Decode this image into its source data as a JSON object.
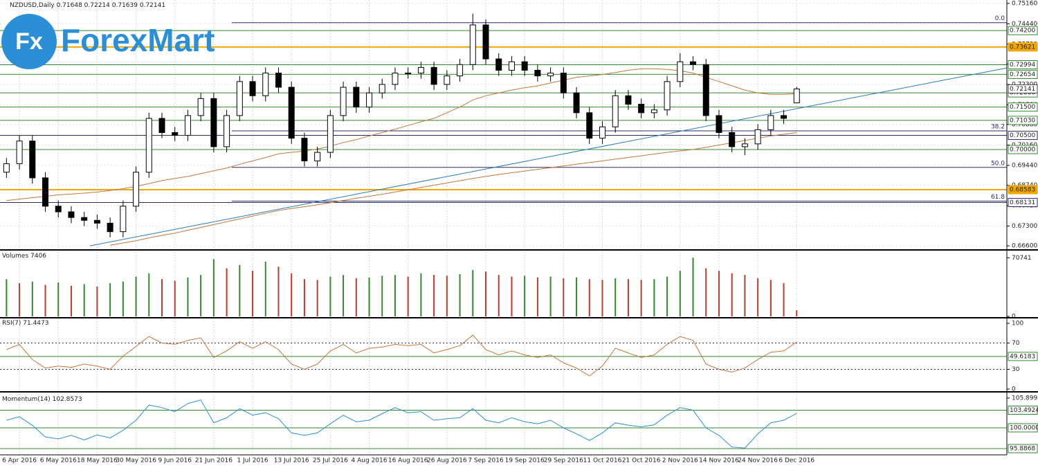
{
  "logo": {
    "mark": "Fx",
    "name": "ForexMart"
  },
  "chart_data": [
    {
      "type": "candlestick",
      "title": "NZDUSD,Daily",
      "categories": [
        null,
        "6 Apr 2016",
        null,
        null,
        "6 May 2016",
        null,
        null,
        "18 May 2016",
        null,
        null,
        "30 May 2016",
        null,
        null,
        "9 Jun 2016",
        null,
        null,
        "21 Jun 2016",
        null,
        null,
        "1 Jul 2016",
        null,
        null,
        "13 Jul 2016",
        null,
        null,
        "25 Jul 2016",
        null,
        null,
        "4 Aug 2016",
        null,
        null,
        "16 Aug 2016",
        null,
        null,
        "26 Aug 2016",
        null,
        null,
        "7 Sep 2016",
        null,
        null,
        "19 Sep 2016",
        null,
        null,
        "29 Sep 2016",
        null,
        null,
        "11 Oct 2016",
        null,
        null,
        "21 Oct 2016",
        null,
        null,
        "2 Nov 2016",
        null,
        null,
        "14 Nov 2016",
        null,
        null,
        "24 Nov 2016",
        null,
        null,
        "6 Dec 2016"
      ],
      "open": [
        0.692,
        0.695,
        0.703,
        0.69,
        0.68,
        0.678,
        0.676,
        0.675,
        0.674,
        0.671,
        0.68,
        0.692,
        0.711,
        0.706,
        0.705,
        0.712,
        0.718,
        0.701,
        0.712,
        0.724,
        0.719,
        0.727,
        0.722,
        0.704,
        0.696,
        0.699,
        0.712,
        0.722,
        0.715,
        0.72,
        0.723,
        0.727,
        0.727,
        0.729,
        0.723,
        0.726,
        0.73,
        0.744,
        0.732,
        0.728,
        0.731,
        0.728,
        0.726,
        0.727,
        0.72,
        0.713,
        0.704,
        0.708,
        0.719,
        0.716,
        0.713,
        0.714,
        0.724,
        0.731,
        0.73,
        0.712,
        0.706,
        0.701,
        0.702,
        0.707,
        0.712,
        0.71648
      ],
      "high": [
        0.697,
        0.705,
        0.705,
        0.692,
        0.682,
        0.68,
        0.678,
        0.677,
        0.676,
        0.682,
        0.694,
        0.713,
        0.713,
        0.708,
        0.714,
        0.72,
        0.72,
        0.714,
        0.726,
        0.726,
        0.729,
        0.729,
        0.724,
        0.706,
        0.701,
        0.714,
        0.724,
        0.724,
        0.722,
        0.725,
        0.729,
        0.729,
        0.731,
        0.731,
        0.728,
        0.732,
        0.748,
        0.746,
        0.734,
        0.733,
        0.733,
        0.73,
        0.729,
        0.729,
        0.722,
        0.715,
        0.71,
        0.721,
        0.721,
        0.718,
        0.716,
        0.726,
        0.734,
        0.733,
        0.732,
        0.714,
        0.708,
        0.704,
        0.709,
        0.714,
        0.714,
        0.72214
      ],
      "low": [
        0.69,
        0.693,
        0.688,
        0.678,
        0.676,
        0.674,
        0.673,
        0.672,
        0.669,
        0.669,
        0.678,
        0.69,
        0.704,
        0.703,
        0.703,
        0.71,
        0.699,
        0.699,
        0.71,
        0.717,
        0.717,
        0.72,
        0.702,
        0.694,
        0.694,
        0.697,
        0.71,
        0.713,
        0.713,
        0.718,
        0.721,
        0.725,
        0.725,
        0.721,
        0.721,
        0.724,
        0.728,
        0.73,
        0.726,
        0.726,
        0.726,
        0.724,
        0.724,
        0.718,
        0.711,
        0.702,
        0.702,
        0.706,
        0.714,
        0.711,
        0.711,
        0.712,
        0.722,
        0.728,
        0.71,
        0.704,
        0.699,
        0.698,
        0.7,
        0.705,
        0.709,
        0.71639
      ],
      "close": [
        0.695,
        0.703,
        0.69,
        0.68,
        0.678,
        0.676,
        0.675,
        0.674,
        0.671,
        0.68,
        0.692,
        0.711,
        0.706,
        0.705,
        0.712,
        0.718,
        0.701,
        0.712,
        0.724,
        0.719,
        0.727,
        0.722,
        0.704,
        0.696,
        0.699,
        0.712,
        0.722,
        0.715,
        0.72,
        0.723,
        0.727,
        0.727,
        0.729,
        0.723,
        0.726,
        0.73,
        0.744,
        0.732,
        0.728,
        0.731,
        0.728,
        0.726,
        0.727,
        0.72,
        0.713,
        0.704,
        0.708,
        0.719,
        0.716,
        0.713,
        0.714,
        0.724,
        0.731,
        0.73,
        0.712,
        0.706,
        0.701,
        0.702,
        0.707,
        0.712,
        0.711,
        0.72141
      ],
      "overlays": [
        {
          "color": "#c8763a",
          "values": [
            0.682,
            0.6825,
            0.683,
            0.6835,
            0.684,
            0.6843,
            0.6846,
            0.685,
            0.6855,
            0.6862,
            0.687,
            0.688,
            0.689,
            0.6898,
            0.6905,
            0.6915,
            0.6925,
            0.6935,
            0.6948,
            0.696,
            0.6972,
            0.6985,
            0.699,
            0.6995,
            0.7002,
            0.7012,
            0.7025,
            0.7035,
            0.7048,
            0.706,
            0.7072,
            0.7085,
            0.7098,
            0.711,
            0.713,
            0.715,
            0.7175,
            0.719,
            0.72,
            0.721,
            0.7218,
            0.7225,
            0.7235,
            0.7245,
            0.7255,
            0.726,
            0.7265,
            0.7272,
            0.728,
            0.7285,
            0.7285,
            0.7283,
            0.7278,
            0.727,
            0.7255,
            0.724,
            0.7225,
            0.721,
            0.72,
            0.7195,
            0.7195,
            0.7197
          ]
        },
        {
          "color": "#c8763a",
          "values": [
            null,
            null,
            null,
            null,
            null,
            null,
            null,
            null,
            0.6662,
            0.667,
            0.6678,
            0.6688,
            0.6697,
            0.6705,
            0.6715,
            0.6725,
            0.6735,
            0.6745,
            0.6755,
            0.6765,
            0.6775,
            0.6785,
            0.6792,
            0.6798,
            0.6805,
            0.6812,
            0.682,
            0.6828,
            0.6835,
            0.6842,
            0.685,
            0.6858,
            0.6866,
            0.6874,
            0.6882,
            0.689,
            0.6898,
            0.6905,
            0.6912,
            0.6918,
            0.6924,
            0.693,
            0.6936,
            0.6942,
            0.6948,
            0.6954,
            0.696,
            0.6966,
            0.6972,
            0.6978,
            0.6984,
            0.699,
            0.6995,
            0.7,
            0.7008,
            0.7016,
            0.7024,
            0.7032,
            0.704,
            0.7048,
            0.7054,
            0.706
          ]
        }
      ],
      "trendline": {
        "color": "#2a7bbd",
        "x": [
          6.44,
          77.2
        ],
        "values": [
          0.666,
          0.7288
        ]
      },
      "levels": [
        {
          "value": 0.742,
          "label": "0.74200"
        },
        {
          "value": 0.73621,
          "label": "0.73621"
        },
        {
          "value": 0.72994,
          "label": "0.72994"
        },
        {
          "value": 0.72654,
          "label": "0.72654"
        },
        {
          "value": 0.72,
          "label": "0.72000"
        },
        {
          "value": 0.715,
          "label": "0.71500"
        },
        {
          "value": 0.7103,
          "label": "0.71030"
        },
        {
          "value": 0.705,
          "label": "0.70500"
        },
        {
          "value": 0.7,
          "label": "0.70000"
        },
        {
          "value": 0.68583,
          "label": "0.68583"
        },
        {
          "value": 0.68131,
          "label": "0.68131"
        }
      ],
      "level_colors": [
        "#2e8b2e",
        "#f0a800",
        "#2e8b2e",
        "#2e8b2e",
        "#2e8b2e",
        "#2e8b2e",
        "#2e8b2e",
        "#2a2a6a",
        "#2e8b2e",
        "#f0a800",
        "#2a2a6a"
      ],
      "fibonacci": [
        {
          "value": 0.7448,
          "label": "0.0"
        },
        {
          "value": 0.7066,
          "label": "38.2"
        },
        {
          "value": 0.6937,
          "label": "50.0"
        },
        {
          "value": 0.6818,
          "label": "61.8"
        }
      ],
      "fib_color": "#2a2a6a",
      "ylim": [
        0.6648,
        0.7528
      ],
      "yticks": [
        {
          "value": 0.7516,
          "label": "0.75160"
        },
        {
          "value": 0.7444,
          "label": "0.74440"
        },
        {
          "value": 0.7372,
          "label": "0.73720"
        },
        {
          "value": 0.7302,
          "label": "0.73020"
        },
        {
          "value": 0.723,
          "label": "0.72300"
        },
        {
          "value": 0.7158,
          "label": "0.71580"
        },
        {
          "value": 0.7088,
          "label": "0.70880"
        },
        {
          "value": 0.7016,
          "label": "0.70160"
        },
        {
          "value": 0.6944,
          "label": "0.69440"
        },
        {
          "value": 0.6874,
          "label": "0.68740"
        },
        {
          "value": 0.6802,
          "label": "0.68020"
        },
        {
          "value": 0.673,
          "label": "0.67300"
        },
        {
          "value": 0.666,
          "label": "0.66600"
        }
      ],
      "grid": true
    },
    {
      "type": "bar",
      "title": "Volumes",
      "values": [
        45000,
        40000,
        42000,
        38000,
        41000,
        37000,
        39000,
        36000,
        40000,
        42000,
        48000,
        52000,
        45000,
        43000,
        47000,
        50000,
        69000,
        58000,
        62000,
        55000,
        66000,
        60000,
        52000,
        45000,
        44000,
        48000,
        50000,
        46000,
        47000,
        49000,
        50000,
        48000,
        52000,
        50000,
        49000,
        51000,
        56000,
        54000,
        50000,
        48000,
        49000,
        47000,
        48000,
        46000,
        47000,
        45000,
        44000,
        46000,
        45000,
        44000,
        45000,
        48000,
        55000,
        70741,
        58000,
        55000,
        52000,
        50000,
        46000,
        44000,
        40000,
        7406
      ],
      "up_color": "#2e8b2e",
      "down_color": "#c0392b",
      "ylim": [
        0,
        76000
      ],
      "yticks": [
        0,
        70741
      ]
    },
    {
      "type": "line",
      "title": "RSI(7)",
      "color": "#c8763a",
      "values": [
        60,
        68,
        45,
        32,
        35,
        33,
        38,
        35,
        30,
        50,
        65,
        80,
        70,
        68,
        74,
        78,
        48,
        58,
        72,
        62,
        72,
        60,
        38,
        30,
        38,
        58,
        68,
        55,
        62,
        64,
        68,
        66,
        68,
        55,
        60,
        66,
        82,
        60,
        52,
        58,
        52,
        48,
        52,
        40,
        32,
        20,
        35,
        62,
        55,
        48,
        52,
        68,
        80,
        74,
        38,
        30,
        26,
        32,
        45,
        56,
        58,
        71.4473
      ],
      "ylim": [
        0,
        100
      ],
      "yticks": [
        0,
        30,
        70,
        100
      ],
      "levels": [
        49.6183
      ],
      "level_color": "#2e8b2e",
      "grid": true
    },
    {
      "type": "line",
      "title": "Momentum(14)",
      "color": "#2a8fd6",
      "values": [
        101.5,
        102.2,
        100.5,
        98.2,
        97.8,
        98.5,
        97.6,
        98.6,
        98.0,
        99.5,
        101.5,
        104.5,
        104.0,
        103.2,
        104.8,
        105.5,
        101.0,
        102.0,
        103.8,
        102.5,
        103.0,
        101.8,
        99.0,
        98.5,
        99.0,
        100.8,
        102.5,
        101.2,
        101.5,
        102.8,
        104.0,
        103.0,
        103.2,
        101.5,
        101.8,
        102.0,
        103.8,
        101.5,
        101.0,
        102.0,
        101.2,
        100.8,
        101.5,
        100.0,
        98.8,
        97.5,
        99.0,
        101.0,
        100.5,
        100.2,
        100.6,
        102.5,
        104.0,
        103.5,
        100.0,
        98.5,
        96.2,
        96.0,
        98.8,
        101.0,
        101.5,
        102.8573
      ],
      "ylim": [
        94.65,
        106.85
      ],
      "yticks": [
        105.8993
      ],
      "levels": [
        103.4924,
        {
          "value": 100,
          "label": "100.0000"
        },
        95.8868
      ],
      "level_color": "#2e8b2e"
    }
  ]
}
